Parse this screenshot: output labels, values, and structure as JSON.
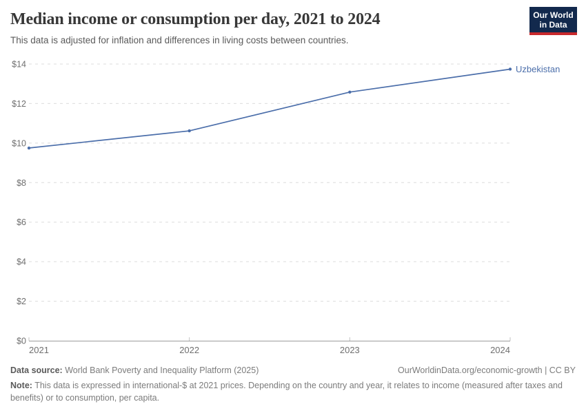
{
  "header": {
    "title": "Median income or consumption per day, 2021 to 2024",
    "subtitle": "This data is adjusted for inflation and differences in living costs between countries.",
    "logo": {
      "line1": "Our World",
      "line2": "in Data",
      "bg_color": "#12294d",
      "bar_color": "#c7292d"
    }
  },
  "chart_data": {
    "type": "line",
    "title": "Median income or consumption per day, 2021 to 2024",
    "x": [
      2021,
      2022,
      2023,
      2024
    ],
    "series": [
      {
        "name": "Uzbekistan",
        "values": [
          9.75,
          10.62,
          12.58,
          13.74
        ],
        "color": "#4b6eaa"
      }
    ],
    "xlabel": "",
    "ylabel": "",
    "ylim": [
      0,
      14
    ],
    "yticks": [
      0,
      2,
      4,
      6,
      8,
      10,
      12,
      14
    ],
    "ytick_prefix": "$",
    "xtick_labels": [
      "2021",
      "2022",
      "2023",
      "2024"
    ],
    "grid": "horizontal-dashed",
    "legend": "end-of-line-label",
    "grid_color": "#dcdcdc",
    "axis_color": "#9b9b9b",
    "tick_color": "#c2c2c2",
    "tick_label_color": "#6f6f6f"
  },
  "footer": {
    "data_source_label": "Data source:",
    "data_source_text": "World Bank Poverty and Inequality Platform (2025)",
    "attribution": "OurWorldinData.org/economic-growth | CC BY",
    "note_label": "Note:",
    "note_text": "This data is expressed in international-$ at 2021 prices. Depending on the country and year, it relates to income (measured after taxes and benefits) or to consumption, per capita."
  }
}
